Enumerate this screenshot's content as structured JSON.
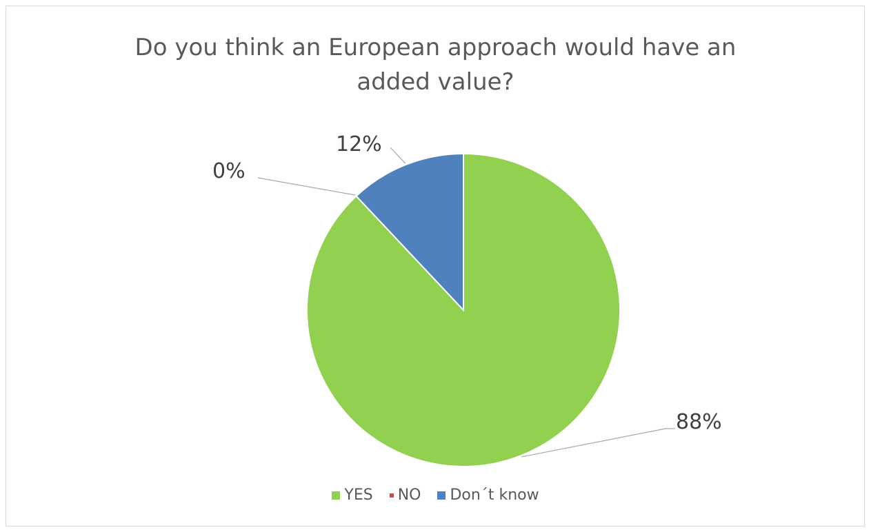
{
  "chart_data": {
    "type": "pie",
    "title": "Do you think an European approach would have an added value?",
    "title_lines": [
      "Do you think an European approach would have an",
      "added value?"
    ],
    "categories": [
      "YES",
      "NO",
      "Don´t know"
    ],
    "values": [
      88,
      0,
      12
    ],
    "data_labels": [
      "88%",
      "0%",
      "12%"
    ],
    "colors": [
      "#92d050",
      "#c0504d",
      "#4f81bd"
    ],
    "legend_position": "bottom",
    "start_angle": "12 o'clock, clockwise"
  }
}
